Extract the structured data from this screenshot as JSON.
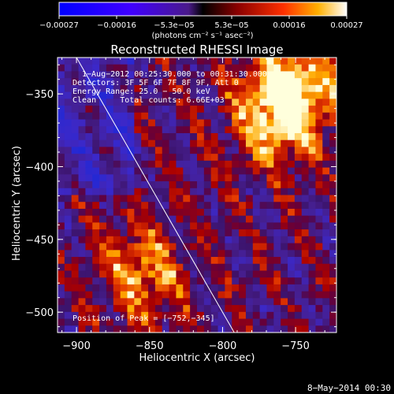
{
  "chart_data": {
    "type": "heatmap",
    "title": "Reconstructed RHESSI Image",
    "xlabel": "Heliocentric X (arcsec)",
    "ylabel": "Heliocentric Y (arcsec)",
    "xlim": [
      -913,
      -722
    ],
    "ylim": [
      -514,
      -325
    ],
    "x_ticks": [
      {
        "value": -900,
        "label": "−900"
      },
      {
        "value": -850,
        "label": "−850"
      },
      {
        "value": -800,
        "label": "−800"
      },
      {
        "value": -750,
        "label": "−750"
      }
    ],
    "y_ticks": [
      {
        "value": -350,
        "label": "−350"
      },
      {
        "value": -400,
        "label": "−400"
      },
      {
        "value": -450,
        "label": "−450"
      },
      {
        "value": -500,
        "label": "−500"
      }
    ],
    "colorbar": {
      "min": -0.00027,
      "max": 0.00027,
      "tick_labels": [
        "−0.00027",
        "−0.00016",
        "−5.3e−05",
        "5.3e−05",
        "0.00016",
        "0.00027"
      ],
      "unit_label": "(photons cm⁻² s⁻¹ asec⁻²)"
    },
    "annotations": {
      "line1": "1−Aug−2012 00:25:30.000 to 00:31:30.000",
      "line2": "Detectors: 3F 5F 6F 7F 8F 9F, Att 0",
      "line3": "Energy Range: 25.0 − 50.0 keV",
      "line4": "Clean     Total counts: 6.66E+03",
      "peak": "Position of Peak = [−752,−345]"
    },
    "limb_line": [
      [
        -900,
        -325
      ],
      [
        -792,
        -514
      ]
    ],
    "peaks": [
      {
        "x": -752,
        "y": -345,
        "value": 0.00027
      },
      {
        "x": -855,
        "y": -473,
        "value": 0.00019
      },
      {
        "x": -763,
        "y": -370,
        "value": 0.00017
      }
    ],
    "footer": "8−May−2014 00:30"
  }
}
